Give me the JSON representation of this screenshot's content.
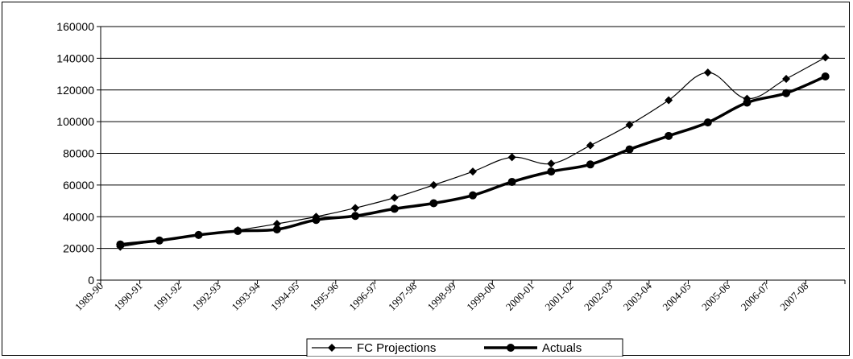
{
  "chart_data": {
    "type": "line",
    "title": "",
    "xlabel": "",
    "ylabel": "",
    "ylim": [
      0,
      160000
    ],
    "yticks": [
      0,
      20000,
      40000,
      60000,
      80000,
      100000,
      120000,
      140000,
      160000
    ],
    "ytick_labels": [
      "0",
      "20000",
      "40000",
      "60000",
      "80000",
      "100000",
      "120000",
      "140000",
      "160000"
    ],
    "categories": [
      "1989-90",
      "1990-91",
      "1991-92",
      "1992-93",
      "1993-94",
      "1994-95",
      "1995-96",
      "1996-97",
      "1997-98",
      "1998-99",
      "1999-00",
      "2000-01",
      "2001-02",
      "2002-03",
      "2003-04",
      "2004-05",
      "2005-06",
      "2006-07",
      "2007-08"
    ],
    "grid": true,
    "legend_position": "bottom",
    "series": [
      {
        "name": "FC Projections",
        "color": "#000000",
        "marker": "diamond",
        "line_width": "thin",
        "values": [
          21000,
          25000,
          28500,
          31500,
          35500,
          40000,
          45500,
          52000,
          60000,
          68500,
          77500,
          73500,
          85000,
          98000,
          113500,
          131000,
          114500,
          127000,
          140500
        ]
      },
      {
        "name": "Actuals",
        "color": "#000000",
        "marker": "circle",
        "line_width": "thick",
        "values": [
          22500,
          25000,
          28500,
          31000,
          32000,
          38000,
          40500,
          45000,
          48500,
          53500,
          62000,
          68500,
          73000,
          82500,
          91000,
          99500,
          112000,
          118000,
          128500
        ]
      }
    ]
  }
}
